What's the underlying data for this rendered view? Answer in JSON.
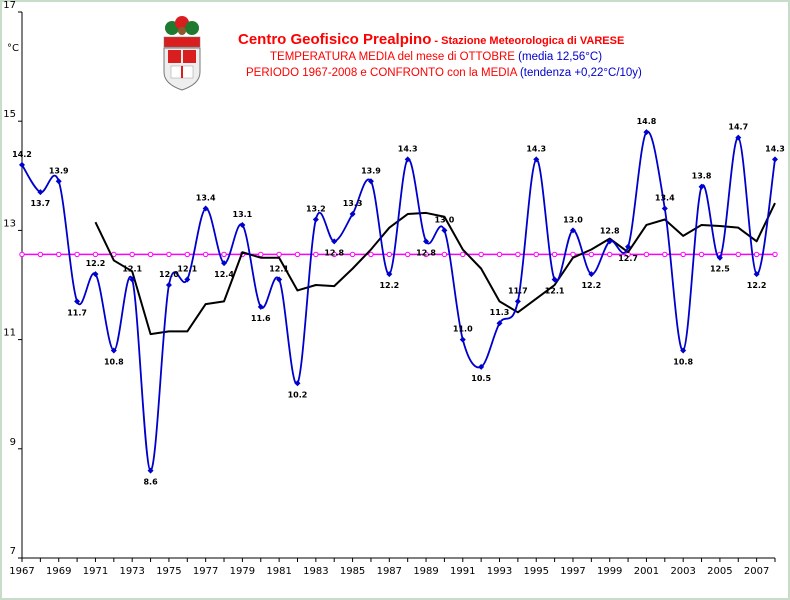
{
  "header": {
    "title_main": "Centro Geofisico Prealpino",
    "title_sub": " - Stazione Meteorologica di VARESE",
    "line2_a": "TEMPERATURA MEDIA del mese di OTTOBRE ",
    "line2_b": "(media 12,56°C)",
    "line3_a": "PERIODO 1967-2008 e CONFRONTO con la MEDIA ",
    "line3_b": "(tendenza +0,22°C/10y)"
  },
  "colors": {
    "frame": "#C9DCC9",
    "title_red": "#FF0000",
    "line_blue": "#0000CC",
    "trend": "#000000",
    "mean": "#FF00FF",
    "seal_red": "#D81E1E",
    "seal_green": "#1E7A2E"
  },
  "icons": {
    "logo": "province-coat-of-arms-icon"
  },
  "chart_data": {
    "type": "line",
    "title": "TEMPERATURA MEDIA del mese di OTTOBRE",
    "ylabel": "°C",
    "xlabel": "",
    "ylim": [
      7,
      17
    ],
    "yticks": [
      7,
      9,
      11,
      13,
      15,
      17
    ],
    "xlim": [
      1967,
      2008
    ],
    "xticks": [
      "1967",
      "1969",
      "1971",
      "1973",
      "1975",
      "1977",
      "1979",
      "1981",
      "1983",
      "1985",
      "1987",
      "1989",
      "1991",
      "1993",
      "1995",
      "1997",
      "1999",
      "2001",
      "2003",
      "2005",
      "2007"
    ],
    "grid": false,
    "mean_value": 12.56,
    "series": [
      {
        "values": [
          {
            "year": 1967,
            "value": 14.2,
            "label": "14.2"
          },
          {
            "year": 1968,
            "value": 13.7,
            "label": "13.7"
          },
          {
            "year": 1969,
            "value": 13.9,
            "label": "13.9"
          },
          {
            "year": 1970,
            "value": 11.7,
            "label": "11.7"
          },
          {
            "year": 1971,
            "value": 12.2,
            "label": "12.2"
          },
          {
            "year": 1972,
            "value": 10.8,
            "label": "10.8"
          },
          {
            "year": 1973,
            "value": 12.1,
            "label": "12.1"
          },
          {
            "year": 1974,
            "value": 8.6,
            "label": "8.6"
          },
          {
            "year": 1975,
            "value": 12.0,
            "label": "12.0"
          },
          {
            "year": 1976,
            "value": 12.1,
            "label": "12.1"
          },
          {
            "year": 1977,
            "value": 13.4,
            "label": "13.4"
          },
          {
            "year": 1978,
            "value": 12.4,
            "label": "12.4"
          },
          {
            "year": 1979,
            "value": 13.1,
            "label": "13.1"
          },
          {
            "year": 1980,
            "value": 11.6,
            "label": "11.6"
          },
          {
            "year": 1981,
            "value": 12.1,
            "label": "12.1"
          },
          {
            "year": 1982,
            "value": 10.2,
            "label": "10.2"
          },
          {
            "year": 1983,
            "value": 13.2,
            "label": "13.2"
          },
          {
            "year": 1984,
            "value": 12.8,
            "label": "12.8"
          },
          {
            "year": 1985,
            "value": 13.3,
            "label": "13.3"
          },
          {
            "year": 1986,
            "value": 13.9,
            "label": "13.9"
          },
          {
            "year": 1987,
            "value": 12.2,
            "label": "12.2"
          },
          {
            "year": 1988,
            "value": 14.3,
            "label": "14.3"
          },
          {
            "year": 1989,
            "value": 12.8,
            "label": "12.8"
          },
          {
            "year": 1990,
            "value": 13.0,
            "label": "13.0"
          },
          {
            "year": 1991,
            "value": 11.0,
            "label": "11.0"
          },
          {
            "year": 1992,
            "value": 10.5,
            "label": "10.5"
          },
          {
            "year": 1993,
            "value": 11.3,
            "label": "11.3"
          },
          {
            "year": 1994,
            "value": 11.7,
            "label": "11.7"
          },
          {
            "year": 1995,
            "value": 14.3,
            "label": "14.3"
          },
          {
            "year": 1996,
            "value": 12.1,
            "label": "12.1"
          },
          {
            "year": 1997,
            "value": 13.0,
            "label": "13.0"
          },
          {
            "year": 1998,
            "value": 12.2,
            "label": "12.2"
          },
          {
            "year": 1999,
            "value": 12.8,
            "label": "12.8"
          },
          {
            "year": 2000,
            "value": 12.7,
            "label": "12.7"
          },
          {
            "year": 2001,
            "value": 14.8,
            "label": "14.8"
          },
          {
            "year": 2002,
            "value": 13.4,
            "label": "13.4"
          },
          {
            "year": 2003,
            "value": 10.8,
            "label": "10.8"
          },
          {
            "year": 2004,
            "value": 13.8,
            "label": "13.8"
          },
          {
            "year": 2005,
            "value": 12.5,
            "label": "12.5"
          },
          {
            "year": 2006,
            "value": 14.7,
            "label": "14.7"
          },
          {
            "year": 2007,
            "value": 12.2,
            "label": "12.2"
          },
          {
            "year": 2008,
            "value": 14.3,
            "label": "14.3"
          }
        ]
      },
      {
        "values": [
          {
            "year": 1971,
            "value": 13.15
          },
          {
            "year": 1972,
            "value": 12.45
          },
          {
            "year": 1973,
            "value": 12.25
          },
          {
            "year": 1974,
            "value": 11.1
          },
          {
            "year": 1975,
            "value": 11.15
          },
          {
            "year": 1976,
            "value": 11.15
          },
          {
            "year": 1977,
            "value": 11.65
          },
          {
            "year": 1978,
            "value": 11.7
          },
          {
            "year": 1979,
            "value": 12.6
          },
          {
            "year": 1980,
            "value": 12.5
          },
          {
            "year": 1981,
            "value": 12.5
          },
          {
            "year": 1982,
            "value": 11.9
          },
          {
            "year": 1983,
            "value": 12.0
          },
          {
            "year": 1984,
            "value": 11.98
          },
          {
            "year": 1985,
            "value": 12.3
          },
          {
            "year": 1986,
            "value": 12.65
          },
          {
            "year": 1987,
            "value": 13.05
          },
          {
            "year": 1988,
            "value": 13.3
          },
          {
            "year": 1989,
            "value": 13.32
          },
          {
            "year": 1990,
            "value": 13.25
          },
          {
            "year": 1991,
            "value": 12.65
          },
          {
            "year": 1992,
            "value": 12.3
          },
          {
            "year": 1993,
            "value": 11.7
          },
          {
            "year": 1994,
            "value": 11.5
          },
          {
            "year": 1995,
            "value": 11.75
          },
          {
            "year": 1996,
            "value": 12.0
          },
          {
            "year": 1997,
            "value": 12.5
          },
          {
            "year": 1998,
            "value": 12.65
          },
          {
            "year": 1999,
            "value": 12.85
          },
          {
            "year": 2000,
            "value": 12.6
          },
          {
            "year": 2001,
            "value": 13.1
          },
          {
            "year": 2002,
            "value": 13.2
          },
          {
            "year": 2003,
            "value": 12.9
          },
          {
            "year": 2004,
            "value": 13.1
          },
          {
            "year": 2005,
            "value": 13.08
          },
          {
            "year": 2006,
            "value": 13.05
          },
          {
            "year": 2007,
            "value": 12.8
          },
          {
            "year": 2008,
            "value": 13.5
          }
        ]
      }
    ]
  }
}
